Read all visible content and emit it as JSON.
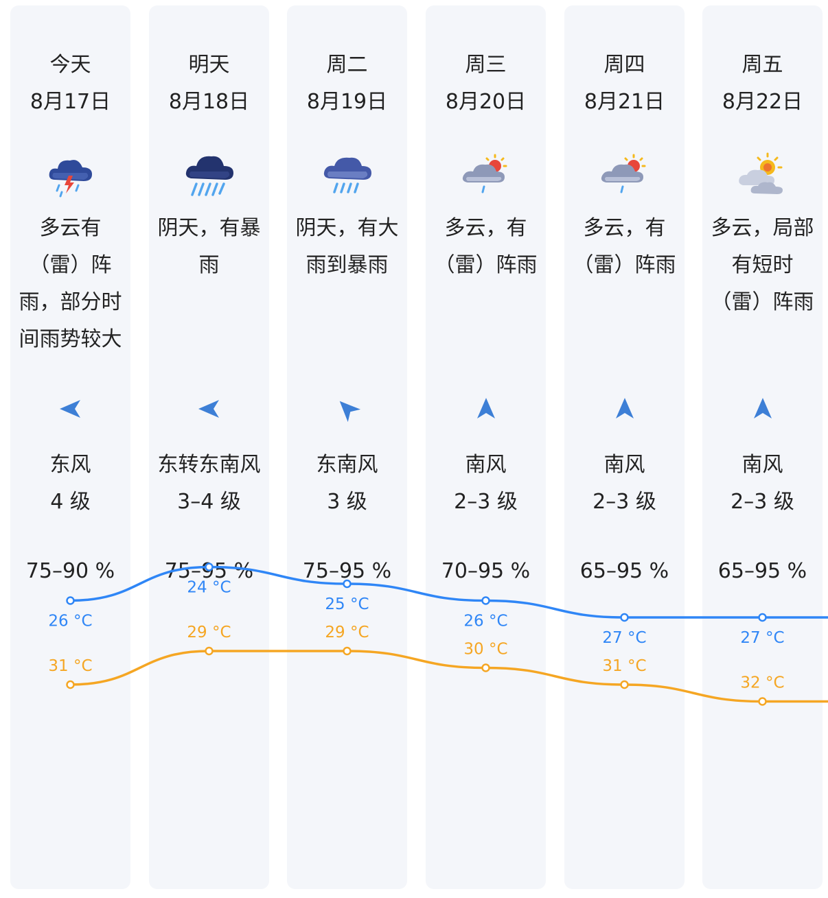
{
  "days": [
    {
      "day": "今天",
      "date": "8月17日",
      "weather_icon": "thunder-shower-icon",
      "desc_lines": [
        "多云有",
        "（雷）阵",
        "雨，部分时",
        "间雨势较大"
      ],
      "wind_dir_icon": "wind-direction-arrow-icon",
      "wind_name": "东风",
      "wind_level": "4 级",
      "humidity": "75–90 %"
    },
    {
      "day": "明天",
      "date": "8月18日",
      "weather_icon": "heavy-rain-icon",
      "desc_lines": [
        "阴天，有暴",
        "雨"
      ],
      "wind_dir_icon": "wind-direction-arrow-icon",
      "wind_name": "东转东南风",
      "wind_level": "3–4 级",
      "humidity": "75–95 %"
    },
    {
      "day": "周二",
      "date": "8月19日",
      "weather_icon": "rain-icon",
      "desc_lines": [
        "阴天，有大",
        "雨到暴雨"
      ],
      "wind_dir_icon": "wind-direction-arrow-icon",
      "wind_name": "东南风",
      "wind_level": "3 级",
      "humidity": "75–95 %"
    },
    {
      "day": "周三",
      "date": "8月20日",
      "weather_icon": "partly-cloudy-shower-icon",
      "desc_lines": [
        "多云，有",
        "（雷）阵雨"
      ],
      "wind_dir_icon": "wind-direction-arrow-icon",
      "wind_name": "南风",
      "wind_level": "2–3 级",
      "humidity": "70–95 %"
    },
    {
      "day": "周四",
      "date": "8月21日",
      "weather_icon": "partly-cloudy-shower-icon",
      "desc_lines": [
        "多云，有",
        "（雷）阵雨"
      ],
      "wind_dir_icon": "wind-direction-arrow-icon",
      "wind_name": "南风",
      "wind_level": "2–3 级",
      "humidity": "65–95 %"
    },
    {
      "day": "周五",
      "date": "8月22日",
      "weather_icon": "partly-cloudy-icon",
      "desc_lines": [
        "多云，局部",
        "有短时",
        "（雷）阵雨"
      ],
      "wind_dir_icon": "wind-direction-arrow-icon",
      "wind_name": "南风",
      "wind_level": "2–3 级",
      "humidity": "65–95 %"
    }
  ],
  "colors": {
    "high": "#f5a623",
    "low": "#2f86f6",
    "column_bg": "#f4f6fa",
    "arrow": "#3d7fd6"
  },
  "chart_data": {
    "type": "line",
    "categories": [
      "8月17日",
      "8月18日",
      "8月19日",
      "8月20日",
      "8月21日",
      "8月22日"
    ],
    "series": [
      {
        "values": [
          31,
          29,
          29,
          30,
          31,
          32
        ],
        "labels": [
          "31 °C",
          "29 °C",
          "29 °C",
          "30 °C",
          "31 °C",
          "32 °C"
        ],
        "color": "#f5a623"
      },
      {
        "values": [
          26,
          24,
          25,
          26,
          27,
          27
        ],
        "labels": [
          "26 °C",
          "24 °C",
          "25 °C",
          "26 °C",
          "27 °C",
          "27 °C"
        ],
        "color": "#2f86f6"
      }
    ],
    "unit": "°C",
    "grid": false,
    "legend": "none"
  }
}
